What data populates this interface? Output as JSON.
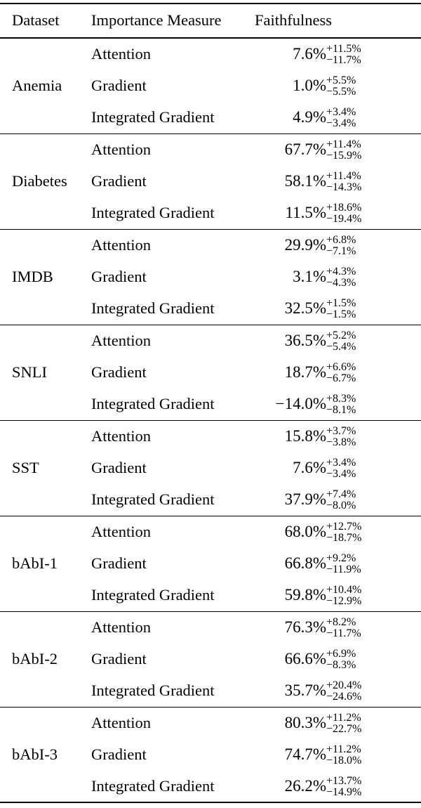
{
  "header": {
    "dataset": "Dataset",
    "importance_measure": "Importance Measure",
    "faithfulness": "Faithfulness"
  },
  "sections": [
    {
      "dataset": "Anemia",
      "rows": [
        {
          "measure": "Attention",
          "value": "7.6%",
          "upper": "+11.5%",
          "lower": "−11.7%"
        },
        {
          "measure": "Gradient",
          "value": "1.0%",
          "upper": "+5.5%",
          "lower": "−5.5%"
        },
        {
          "measure": "Integrated Gradient",
          "value": "4.9%",
          "upper": "+3.4%",
          "lower": "−3.4%"
        }
      ]
    },
    {
      "dataset": "Diabetes",
      "rows": [
        {
          "measure": "Attention",
          "value": "67.7%",
          "upper": "+11.4%",
          "lower": "−15.9%"
        },
        {
          "measure": "Gradient",
          "value": "58.1%",
          "upper": "+11.4%",
          "lower": "−14.3%"
        },
        {
          "measure": "Integrated Gradient",
          "value": "11.5%",
          "upper": "+18.6%",
          "lower": "−19.4%"
        }
      ]
    },
    {
      "dataset": "IMDB",
      "rows": [
        {
          "measure": "Attention",
          "value": "29.9%",
          "upper": "+6.8%",
          "lower": "−7.1%"
        },
        {
          "measure": "Gradient",
          "value": "3.1%",
          "upper": "+4.3%",
          "lower": "−4.3%"
        },
        {
          "measure": "Integrated Gradient",
          "value": "32.5%",
          "upper": "+1.5%",
          "lower": "−1.5%"
        }
      ]
    },
    {
      "dataset": "SNLI",
      "rows": [
        {
          "measure": "Attention",
          "value": "36.5%",
          "upper": "+5.2%",
          "lower": "−5.4%"
        },
        {
          "measure": "Gradient",
          "value": "18.7%",
          "upper": "+6.6%",
          "lower": "−6.7%"
        },
        {
          "measure": "Integrated Gradient",
          "value": "−14.0%",
          "upper": "+8.3%",
          "lower": "−8.1%"
        }
      ]
    },
    {
      "dataset": "SST",
      "rows": [
        {
          "measure": "Attention",
          "value": "15.8%",
          "upper": "+3.7%",
          "lower": "−3.8%"
        },
        {
          "measure": "Gradient",
          "value": "7.6%",
          "upper": "+3.4%",
          "lower": "−3.4%"
        },
        {
          "measure": "Integrated Gradient",
          "value": "37.9%",
          "upper": "+7.4%",
          "lower": "−8.0%"
        }
      ]
    },
    {
      "dataset": "bAbI-1",
      "rows": [
        {
          "measure": "Attention",
          "value": "68.0%",
          "upper": "+12.7%",
          "lower": "−18.7%"
        },
        {
          "measure": "Gradient",
          "value": "66.8%",
          "upper": "+9.2%",
          "lower": "−11.9%"
        },
        {
          "measure": "Integrated Gradient",
          "value": "59.8%",
          "upper": "+10.4%",
          "lower": "−12.9%"
        }
      ]
    },
    {
      "dataset": "bAbI-2",
      "rows": [
        {
          "measure": "Attention",
          "value": "76.3%",
          "upper": "+8.2%",
          "lower": "−11.7%"
        },
        {
          "measure": "Gradient",
          "value": "66.6%",
          "upper": "+6.9%",
          "lower": "−8.3%"
        },
        {
          "measure": "Integrated Gradient",
          "value": "35.7%",
          "upper": "+20.4%",
          "lower": "−24.6%"
        }
      ]
    },
    {
      "dataset": "bAbI-3",
      "rows": [
        {
          "measure": "Attention",
          "value": "80.3%",
          "upper": "+11.2%",
          "lower": "−22.7%"
        },
        {
          "measure": "Gradient",
          "value": "74.7%",
          "upper": "+11.2%",
          "lower": "−18.0%"
        },
        {
          "measure": "Integrated Gradient",
          "value": "26.2%",
          "upper": "+13.7%",
          "lower": "−14.9%"
        }
      ]
    }
  ]
}
